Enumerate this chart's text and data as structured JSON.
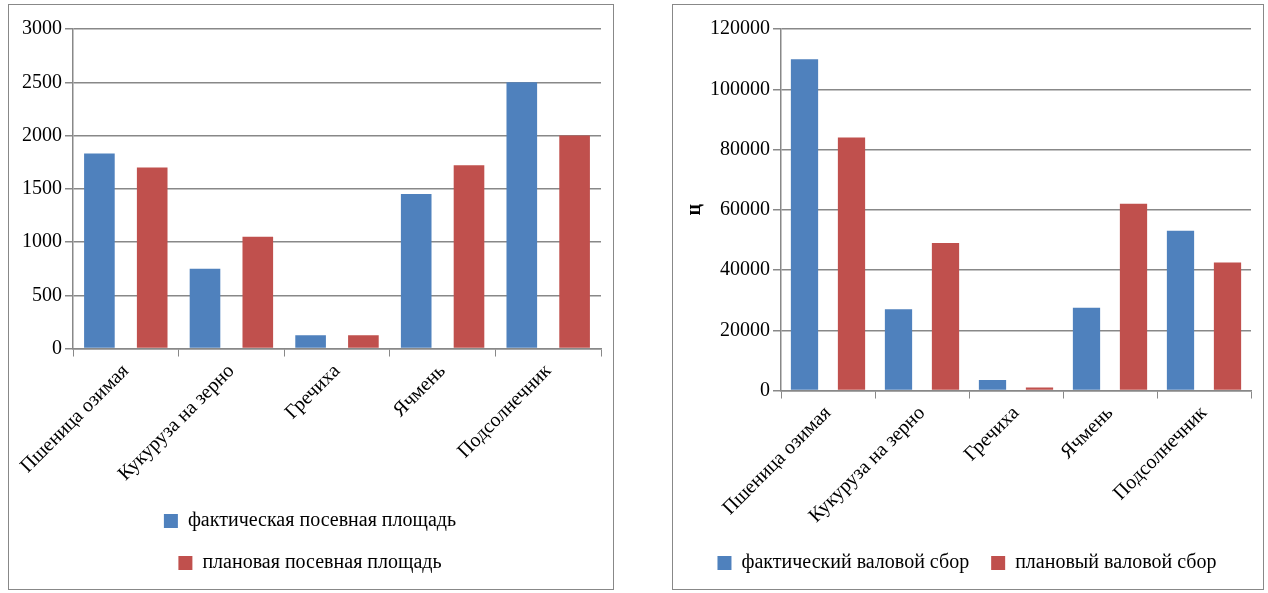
{
  "chart_data": [
    {
      "type": "bar",
      "categories": [
        "Пшеница озимая",
        "Кукуруза на зерно",
        "Гречиха",
        "Ячмень",
        "Подсолнечник"
      ],
      "series": [
        {
          "name": "фактическая посевная площадь",
          "color": "#4f81bd",
          "values": [
            1830,
            750,
            125,
            1450,
            2500
          ]
        },
        {
          "name": "плановая посевная площадь",
          "color": "#c0504d",
          "values": [
            1700,
            1050,
            125,
            1720,
            2000
          ]
        }
      ],
      "ylim": [
        0,
        3000
      ],
      "yticks": [
        0,
        500,
        1000,
        1500,
        2000,
        2500,
        3000
      ],
      "grid": "y",
      "legend": "bottom"
    },
    {
      "type": "bar",
      "ylabel": "ц",
      "categories": [
        "Пшеница озимая",
        "Кукуруза на зерно",
        "Гречиха",
        "Ячмень",
        "Подсолнечник"
      ],
      "series": [
        {
          "name": "фактический валовой сбор",
          "color": "#4f81bd",
          "values": [
            110000,
            27000,
            3500,
            27500,
            53000
          ]
        },
        {
          "name": "плановый валовой сбор",
          "color": "#c0504d",
          "values": [
            84000,
            49000,
            1000,
            62000,
            42500
          ]
        }
      ],
      "ylim": [
        0,
        120000
      ],
      "yticks": [
        0,
        20000,
        40000,
        60000,
        80000,
        100000,
        120000
      ],
      "grid": "y",
      "legend": "bottom"
    }
  ]
}
